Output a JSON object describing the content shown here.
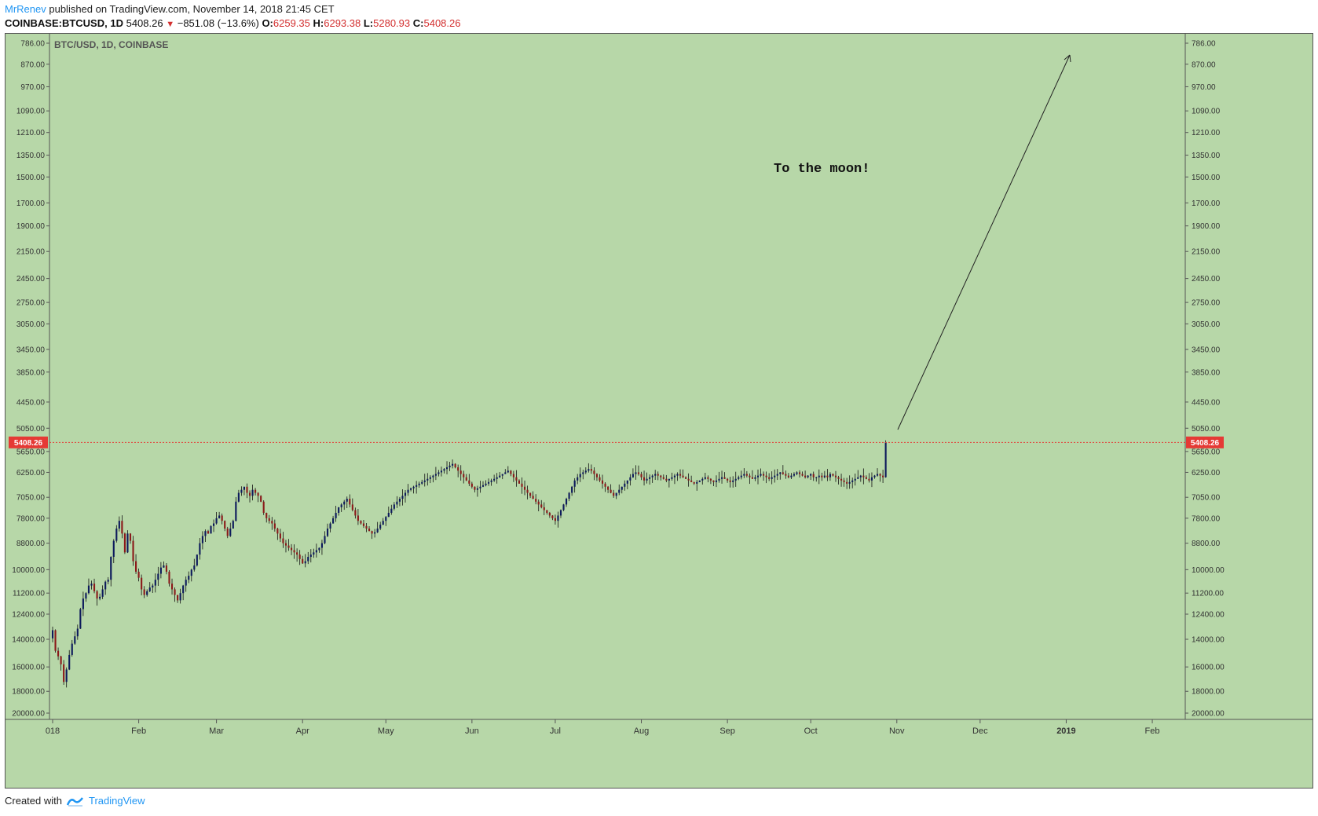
{
  "header": {
    "author": "MrRenev",
    "published_text": " published on TradingView.com, November 14, 2018 21:45 CET",
    "symbol": "COINBASE:BTCUSD, 1D",
    "last": "5408.26",
    "change": "−851.08 (−13.6%)",
    "open_label": "O:",
    "open": "6259.35",
    "high_label": "H:",
    "high": "6293.38",
    "low_label": "L:",
    "low": "5280.93",
    "close_label": "C:",
    "close": "5408.26"
  },
  "footer": {
    "created_with": "Created with",
    "brand": "TradingView"
  },
  "colors": {
    "background": "#b7d7a8",
    "up_candle": "#8b1a1a",
    "down_candle": "#0d1a5c",
    "price_line": "#e53935",
    "accent": "#2196f3"
  },
  "chart_data": {
    "type": "candlestick",
    "title": "BTC/USD, 1D, COINBASE",
    "annotation": "To the moon!",
    "last_price_label": "5408.26",
    "y_axis": {
      "inverted": true,
      "ticks": [
        "786.00",
        "870.00",
        "970.00",
        "1090.00",
        "1210.00",
        "1350.00",
        "1500.00",
        "1700.00",
        "1900.00",
        "2150.00",
        "2450.00",
        "2750.00",
        "3050.00",
        "3450.00",
        "3850.00",
        "4450.00",
        "5050.00",
        "5650.00",
        "6250.00",
        "7050.00",
        "7800.00",
        "8800.00",
        "10000.00",
        "11200.00",
        "12400.00",
        "14000.00",
        "16000.00",
        "18000.00",
        "20000.00"
      ],
      "ylim": [
        786,
        20000
      ]
    },
    "x_axis": {
      "ticks": [
        "018",
        "Feb",
        "Mar",
        "Apr",
        "May",
        "Jun",
        "Jul",
        "Aug",
        "Sep",
        "Oct",
        "Nov",
        "Dec",
        "2019",
        "Feb"
      ],
      "bold_ticks": [
        "2019"
      ]
    },
    "x_range": [
      "2018-01-01",
      "2019-02-14"
    ],
    "closes": [
      13400,
      14800,
      15200,
      15800,
      17200,
      16200,
      15100,
      14300,
      13800,
      13300,
      12100,
      11500,
      11200,
      10800,
      10700,
      11100,
      11500,
      11400,
      11000,
      10600,
      10500,
      9400,
      8700,
      8200,
      7900,
      8400,
      9200,
      8400,
      8700,
      9600,
      10100,
      10400,
      11000,
      11300,
      11100,
      10900,
      10800,
      10500,
      10200,
      9900,
      9800,
      10100,
      10700,
      11000,
      11300,
      11600,
      11200,
      10800,
      10500,
      10300,
      10000,
      9800,
      9300,
      8800,
      8500,
      8300,
      8400,
      8100,
      8000,
      7800,
      7700,
      7900,
      8200,
      8500,
      8200,
      7900,
      7200,
      6900,
      6800,
      6700,
      6900,
      7000,
      6800,
      6900,
      7000,
      7200,
      7600,
      7800,
      7900,
      8000,
      8200,
      8400,
      8600,
      8800,
      8900,
      9000,
      9100,
      9200,
      9300,
      9500,
      9700,
      9600,
      9400,
      9300,
      9200,
      9100,
      9000,
      8800,
      8500,
      8200,
      8000,
      7800,
      7600,
      7400,
      7300,
      7200,
      7100,
      7300,
      7500,
      7700,
      7900,
      8000,
      8100,
      8200,
      8300,
      8400,
      8350,
      8200,
      8050,
      7900,
      7750,
      7600,
      7450,
      7300,
      7200,
      7100,
      7000,
      6900,
      6800,
      6750,
      6700,
      6650,
      6600,
      6550,
      6500,
      6450,
      6400,
      6350,
      6300,
      6250,
      6200,
      6150,
      6100,
      6050,
      6000,
      6100,
      6200,
      6300,
      6400,
      6500,
      6600,
      6700,
      6800,
      6750,
      6700,
      6650,
      6600,
      6550,
      6500,
      6450,
      6400,
      6350,
      6300,
      6250,
      6200,
      6300,
      6400,
      6500,
      6600,
      6700,
      6800,
      6900,
      7000,
      7100,
      7200,
      7300,
      7400,
      7500,
      7600,
      7700,
      7800,
      7900,
      7700,
      7500,
      7300,
      7100,
      6900,
      6700,
      6500,
      6400,
      6300,
      6250,
      6200,
      6150,
      6200,
      6300,
      6400,
      6500,
      6600,
      6700,
      6800,
      6900,
      7000,
      6900,
      6800,
      6700,
      6600,
      6500,
      6400,
      6300,
      6250,
      6300,
      6400,
      6500,
      6450,
      6400,
      6350,
      6300,
      6350,
      6400,
      6450,
      6500,
      6450,
      6400,
      6350,
      6300,
      6350,
      6400,
      6450,
      6500,
      6550,
      6600,
      6550,
      6500,
      6450,
      6400,
      6450,
      6500,
      6550,
      6500,
      6450,
      6400,
      6450,
      6500,
      6550,
      6500,
      6450,
      6400,
      6350,
      6300,
      6350,
      6400,
      6450,
      6400,
      6350,
      6300,
      6350,
      6400,
      6450,
      6400,
      6350,
      6300,
      6250,
      6300,
      6350,
      6400,
      6350,
      6300,
      6250,
      6300,
      6350,
      6400,
      6350,
      6300,
      6400,
      6400,
      6350,
      6400,
      6350,
      6400,
      6300,
      6350,
      6400,
      6450,
      6500,
      6550,
      6600,
      6550,
      6500,
      6450,
      6400,
      6350,
      6400,
      6450,
      6500,
      6400,
      6350,
      6300,
      6350,
      6400,
      5408
    ]
  }
}
